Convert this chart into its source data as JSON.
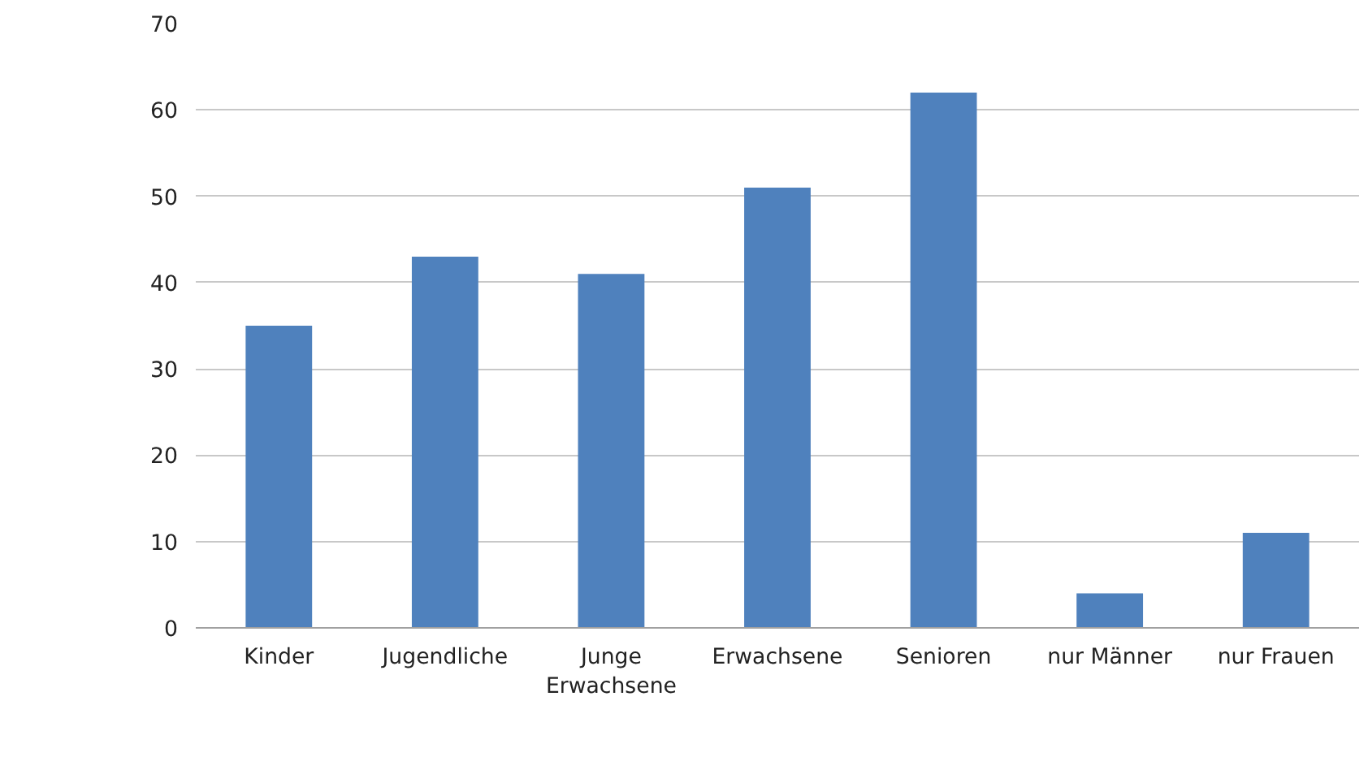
{
  "chart_data": {
    "type": "bar",
    "categories": [
      "Kinder",
      "Jugendliche",
      "Junge\nErwachsene",
      "Erwachsene",
      "Senioren",
      "nur Männer",
      "nur Frauen"
    ],
    "values": [
      35,
      43,
      41,
      51,
      62,
      4,
      11
    ],
    "color": "#4f81bd",
    "ylim": [
      0,
      70
    ],
    "yticks": [
      0,
      10,
      20,
      30,
      40,
      50,
      60,
      70
    ],
    "grid": "y"
  }
}
